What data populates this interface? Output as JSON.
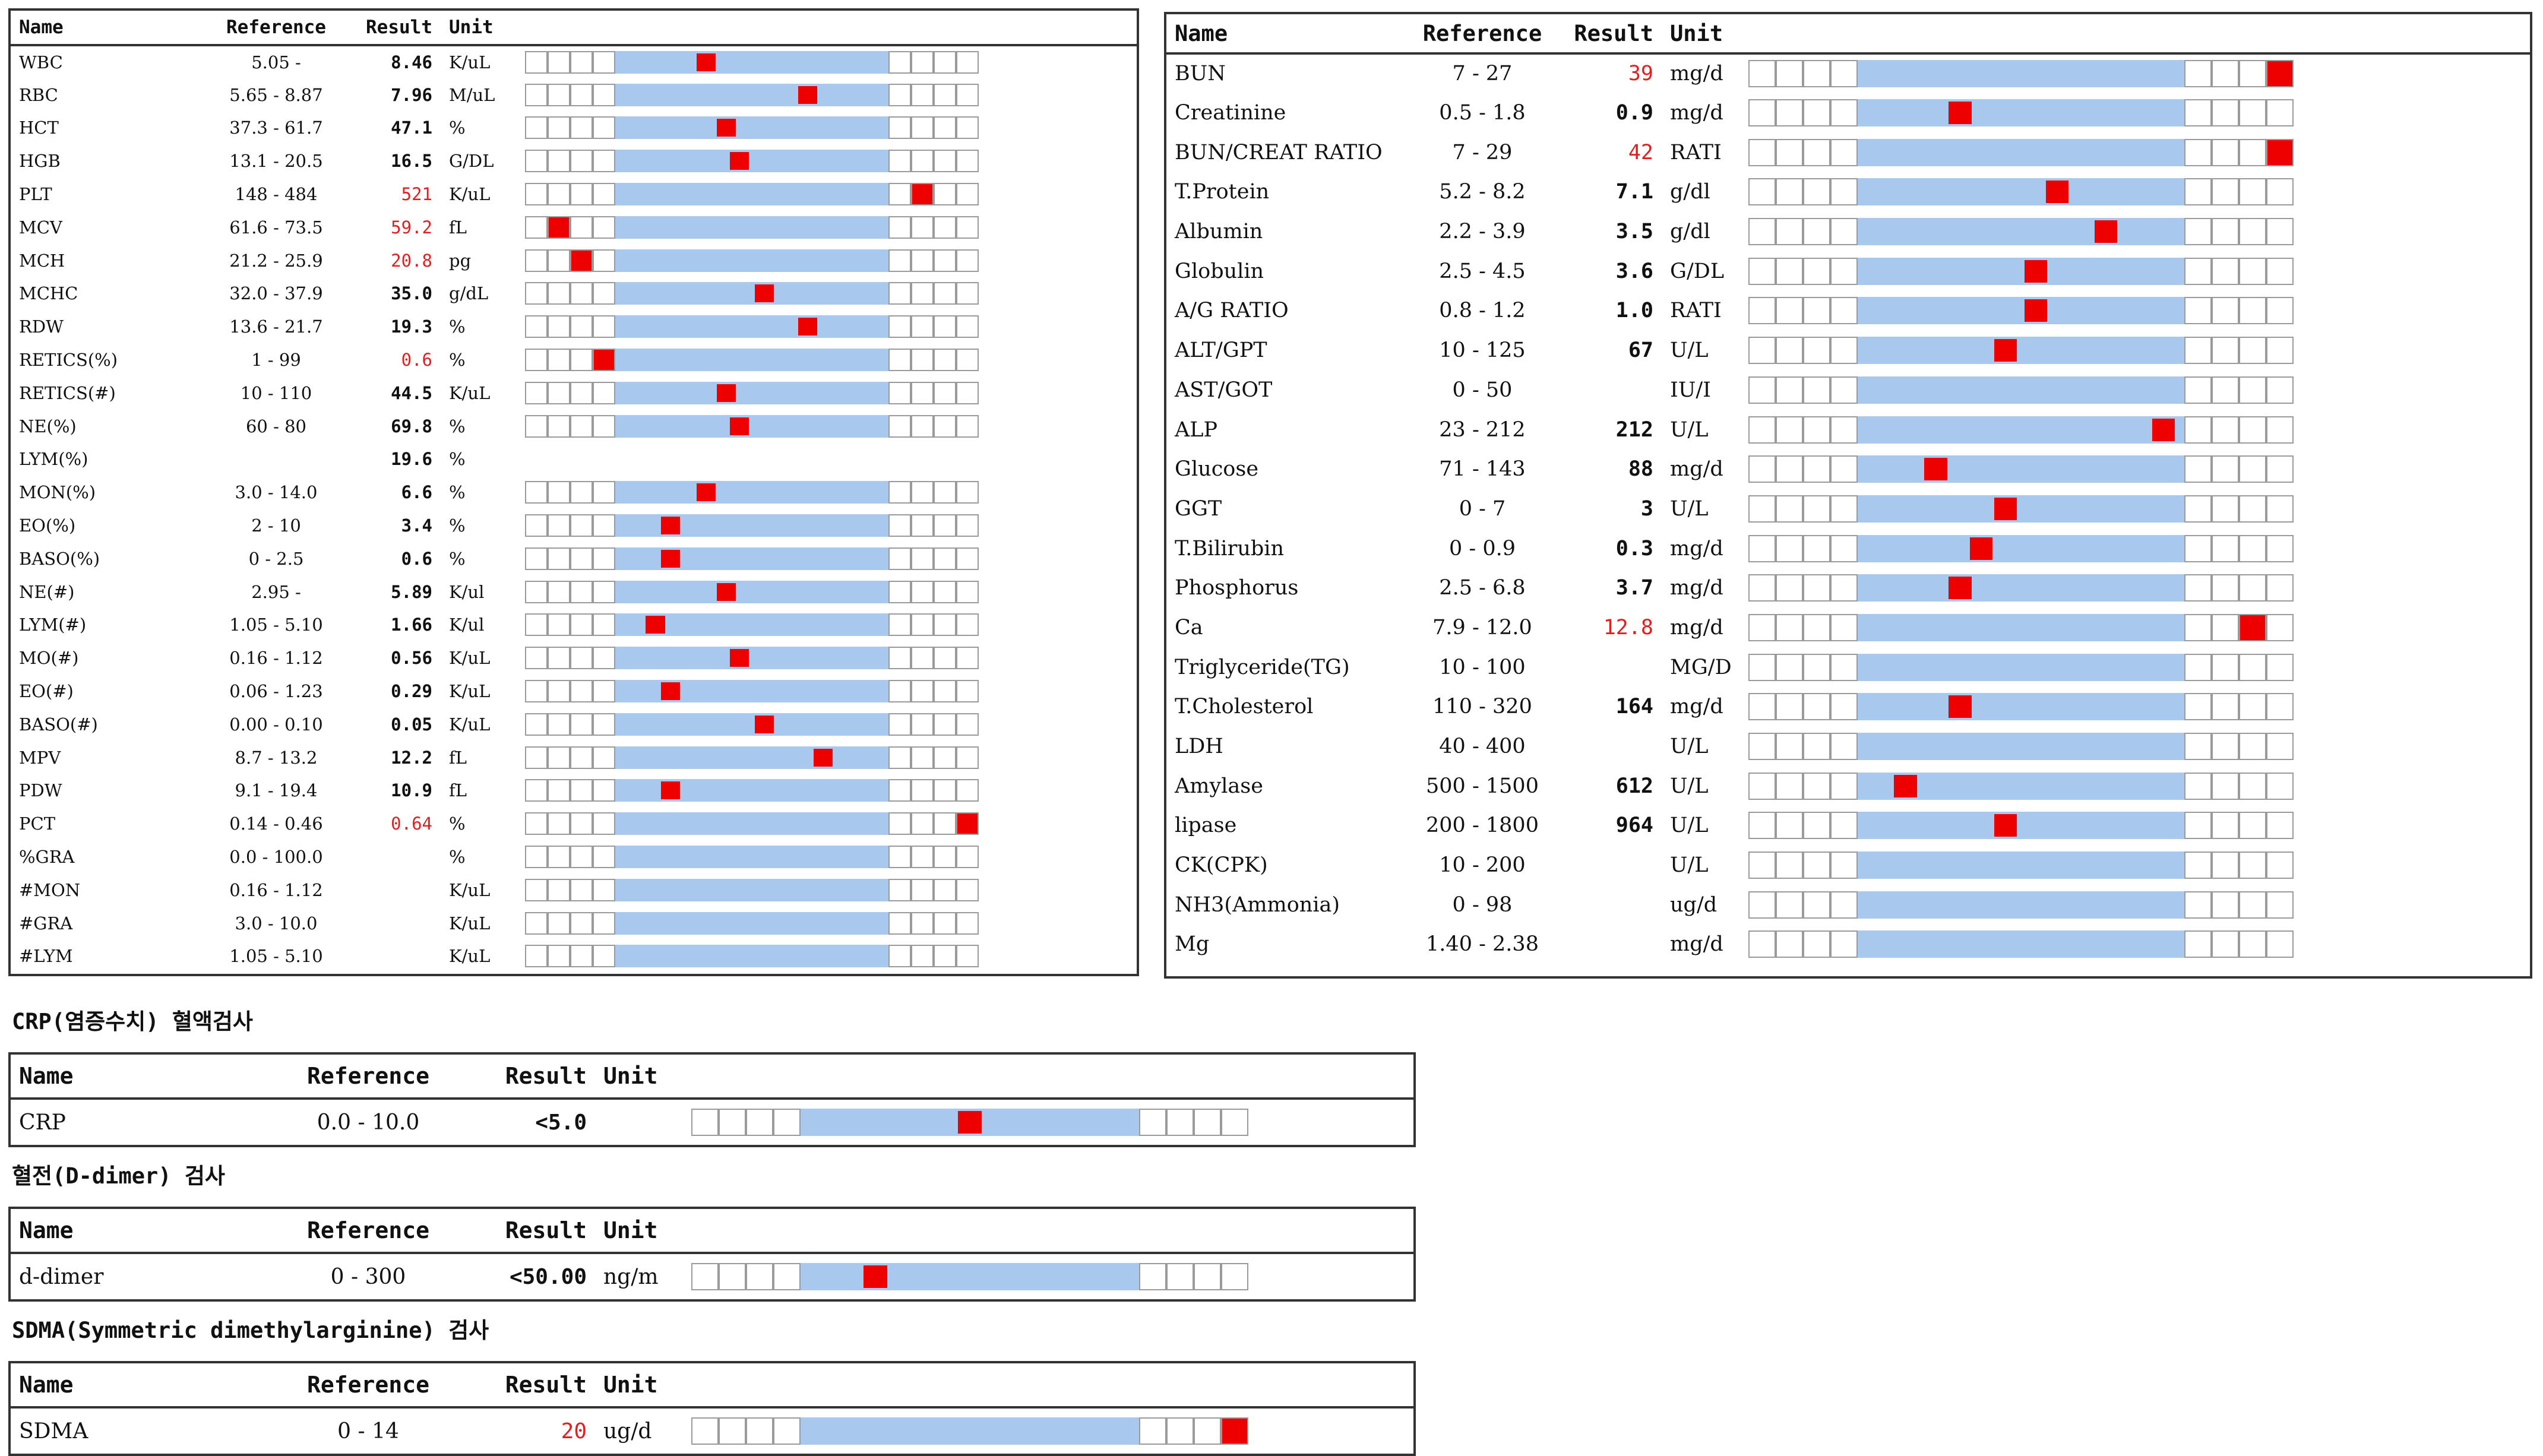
{
  "panel_cbc": {
    "headers": {
      "name": "Name",
      "reference": "Reference",
      "result": "Result",
      "unit": "Unit"
    },
    "rows": [
      {
        "name": "WBC",
        "ref": "5.05 -",
        "val": "8.46",
        "unit": "K/uL",
        "flag": "",
        "level": 0.32
      },
      {
        "name": "RBC",
        "ref": "5.65 - 8.87",
        "val": "7.96",
        "unit": "M/uL",
        "flag": "",
        "level": 0.72
      },
      {
        "name": "HCT",
        "ref": "37.3 - 61.7",
        "val": "47.1",
        "unit": "%",
        "flag": "",
        "level": 0.4
      },
      {
        "name": "HGB",
        "ref": "13.1 - 20.5",
        "val": "16.5",
        "unit": "G/DL",
        "flag": "",
        "level": 0.45
      },
      {
        "name": "PLT",
        "ref": "148 - 484",
        "val": "521",
        "unit": "K/uL",
        "flag": "high",
        "level": 1.11
      },
      {
        "name": "MCV",
        "ref": "61.6 - 73.5",
        "val": "59.2",
        "unit": "fL",
        "flag": "low",
        "level": -0.2
      },
      {
        "name": "MCH",
        "ref": "21.2 - 25.9",
        "val": "20.8",
        "unit": "pg",
        "flag": "low",
        "level": -0.1
      },
      {
        "name": "MCHC",
        "ref": "32.0 - 37.9",
        "val": "35.0",
        "unit": "g/dL",
        "flag": "",
        "level": 0.55
      },
      {
        "name": "RDW",
        "ref": "13.6 - 21.7",
        "val": "19.3",
        "unit": "%",
        "flag": "",
        "level": 0.72
      },
      {
        "name": "RETICS(%)",
        "ref": "1 - 99",
        "val": "0.6",
        "unit": "%",
        "flag": "low",
        "level": -0.01
      },
      {
        "name": "RETICS(#)",
        "ref": "10 - 110",
        "val": "44.5",
        "unit": "K/uL",
        "flag": "",
        "level": 0.4
      },
      {
        "name": "NE(%)",
        "ref": "60 - 80",
        "val": "69.8",
        "unit": "%",
        "flag": "",
        "level": 0.45
      },
      {
        "name": "LYM(%)",
        "ref": "",
        "val": "19.6",
        "unit": "%",
        "flag": "",
        "level": null
      },
      {
        "name": "MON(%)",
        "ref": "3.0 - 14.0",
        "val": "6.6",
        "unit": "%",
        "flag": "",
        "level": 0.32
      },
      {
        "name": "EO(%)",
        "ref": "2 - 10",
        "val": "3.4",
        "unit": "%",
        "flag": "",
        "level": 0.18
      },
      {
        "name": "BASO(%)",
        "ref": "0 - 2.5",
        "val": "0.6",
        "unit": "%",
        "flag": "",
        "level": 0.18
      },
      {
        "name": "NE(#)",
        "ref": "2.95 -",
        "val": "5.89",
        "unit": "K/ul",
        "flag": "",
        "level": 0.4
      },
      {
        "name": "LYM(#)",
        "ref": "1.05 - 5.10",
        "val": "1.66",
        "unit": "K/ul",
        "flag": "",
        "level": 0.12
      },
      {
        "name": "MO(#)",
        "ref": "0.16 - 1.12",
        "val": "0.56",
        "unit": "K/uL",
        "flag": "",
        "level": 0.45
      },
      {
        "name": "EO(#)",
        "ref": "0.06 - 1.23",
        "val": "0.29",
        "unit": "K/uL",
        "flag": "",
        "level": 0.18
      },
      {
        "name": "BASO(#)",
        "ref": "0.00 - 0.10",
        "val": "0.05",
        "unit": "K/uL",
        "flag": "",
        "level": 0.55
      },
      {
        "name": "MPV",
        "ref": "8.7 - 13.2",
        "val": "12.2",
        "unit": "fL",
        "flag": "",
        "level": 0.78
      },
      {
        "name": "PDW",
        "ref": "9.1 - 19.4",
        "val": "10.9",
        "unit": "fL",
        "flag": "",
        "level": 0.18
      },
      {
        "name": "PCT",
        "ref": "0.14 - 0.46",
        "val": "0.64",
        "unit": "%",
        "flag": "high",
        "level": 1.3
      },
      {
        "name": "%GRA",
        "ref": "0.0 - 100.0",
        "val": "",
        "unit": "%",
        "flag": "",
        "level": null
      },
      {
        "name": "#MON",
        "ref": "0.16 - 1.12",
        "val": "",
        "unit": "K/uL",
        "flag": "",
        "level": null
      },
      {
        "name": "#GRA",
        "ref": "3.0 - 10.0",
        "val": "",
        "unit": "K/uL",
        "flag": "",
        "level": null
      },
      {
        "name": "#LYM",
        "ref": "1.05 - 5.10",
        "val": "",
        "unit": "K/uL",
        "flag": "",
        "level": null
      }
    ]
  },
  "panel_chem": {
    "headers": {
      "name": "Name",
      "reference": "Reference",
      "result": "Result",
      "unit": "Unit"
    },
    "rows": [
      {
        "name": "BUN",
        "ref": "7 - 27",
        "val": "39",
        "unit": "mg/d",
        "flag": "high",
        "level": 1.3
      },
      {
        "name": "Creatinine",
        "ref": "0.5 - 1.8",
        "val": "0.9",
        "unit": "mg/d",
        "flag": "",
        "level": 0.3
      },
      {
        "name": "BUN/CREAT RATIO",
        "ref": "7 - 29",
        "val": "42",
        "unit": "RATI",
        "flag": "high",
        "level": 1.3
      },
      {
        "name": "T.Protein",
        "ref": "5.2 - 8.2",
        "val": "7.1",
        "unit": "g/dl",
        "flag": "",
        "level": 0.62
      },
      {
        "name": "Albumin",
        "ref": "2.2 - 3.9",
        "val": "3.5",
        "unit": "g/dl",
        "flag": "",
        "level": 0.78
      },
      {
        "name": "Globulin",
        "ref": "2.5 - 4.5",
        "val": "3.6",
        "unit": "G/DL",
        "flag": "",
        "level": 0.55
      },
      {
        "name": "A/G RATIO",
        "ref": "0.8 - 1.2",
        "val": "1.0",
        "unit": "RATI",
        "flag": "",
        "level": 0.55
      },
      {
        "name": "ALT/GPT",
        "ref": "10 - 125",
        "val": "67",
        "unit": "U/L",
        "flag": "",
        "level": 0.45
      },
      {
        "name": "AST/GOT",
        "ref": "0 - 50",
        "val": "",
        "unit": "IU/I",
        "flag": "",
        "level": null
      },
      {
        "name": "ALP",
        "ref": "23 - 212",
        "val": "212",
        "unit": "U/L",
        "flag": "",
        "level": 0.97
      },
      {
        "name": "Glucose",
        "ref": "71 - 143",
        "val": "88",
        "unit": "mg/d",
        "flag": "",
        "level": 0.22
      },
      {
        "name": "GGT",
        "ref": "0 - 7",
        "val": "3",
        "unit": "U/L",
        "flag": "",
        "level": 0.45
      },
      {
        "name": "T.Bilirubin",
        "ref": "0 - 0.9",
        "val": "0.3",
        "unit": "mg/d",
        "flag": "",
        "level": 0.37
      },
      {
        "name": "Phosphorus",
        "ref": "2.5 - 6.8",
        "val": "3.7",
        "unit": "mg/d",
        "flag": "",
        "level": 0.3
      },
      {
        "name": "Ca",
        "ref": "7.9 - 12.0",
        "val": "12.8",
        "unit": "mg/d",
        "flag": "high",
        "level": 1.2
      },
      {
        "name": "Triglyceride(TG)",
        "ref": "10 - 100",
        "val": "",
        "unit": "MG/D",
        "flag": "",
        "level": null
      },
      {
        "name": "T.Cholesterol",
        "ref": "110 - 320",
        "val": "164",
        "unit": "mg/d",
        "flag": "",
        "level": 0.3
      },
      {
        "name": "LDH",
        "ref": "40 - 400",
        "val": "",
        "unit": "U/L",
        "flag": "",
        "level": null
      },
      {
        "name": "Amylase",
        "ref": "500 - 1500",
        "val": "612",
        "unit": "U/L",
        "flag": "",
        "level": 0.12
      },
      {
        "name": "lipase",
        "ref": "200 - 1800",
        "val": "964",
        "unit": "U/L",
        "flag": "",
        "level": 0.45
      },
      {
        "name": "CK(CPK)",
        "ref": "10 - 200",
        "val": "",
        "unit": "U/L",
        "flag": "",
        "level": null
      },
      {
        "name": "NH3(Ammonia)",
        "ref": "0 - 98",
        "val": "",
        "unit": "ug/d",
        "flag": "",
        "level": null
      },
      {
        "name": "Mg",
        "ref": "1.40 - 2.38",
        "val": "",
        "unit": "mg/d",
        "flag": "",
        "level": null
      }
    ]
  },
  "crp": {
    "title": "CRP(염증수치) 혈액검사",
    "headers": {
      "name": "Name",
      "reference": "Reference",
      "result": "Result",
      "unit": "Unit"
    },
    "row": {
      "name": "CRP",
      "ref": "0.0 - 10.0",
      "val": "<5.0",
      "unit": "",
      "flag": "",
      "level": 0.5
    }
  },
  "ddimer": {
    "title": "혈전(D-dimer) 검사",
    "headers": {
      "name": "Name",
      "reference": "Reference",
      "result": "Result",
      "unit": "Unit"
    },
    "row": {
      "name": "d-dimer",
      "ref": "0 - 300",
      "val": "<50.00",
      "unit": "ng/m",
      "flag": "",
      "level": 0.2
    }
  },
  "sdma": {
    "title": "SDMA(Symmetric dimethylarginine) 검사",
    "headers": {
      "name": "Name",
      "reference": "Reference",
      "result": "Result",
      "unit": "Unit"
    },
    "row": {
      "name": "SDMA",
      "ref": "0 - 14",
      "val": "20",
      "unit": "ug/d",
      "flag": "high",
      "level": 1.3
    }
  },
  "colors": {
    "normal_range": "#a8c8ee",
    "marker": "#ee0000",
    "high_text": "#e02020",
    "border": "#333333"
  }
}
